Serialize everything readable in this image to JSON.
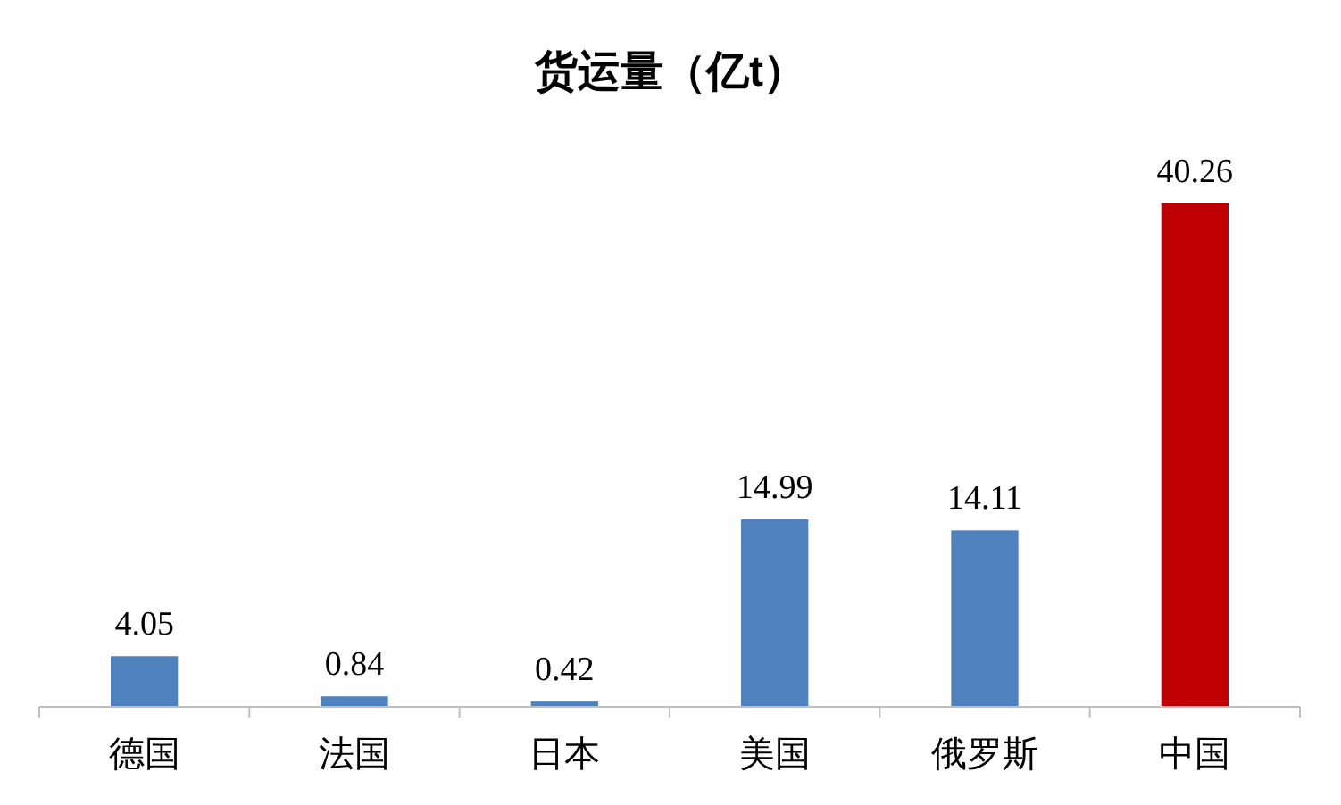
{
  "chart_data": {
    "type": "bar",
    "title": "货运量（亿t）",
    "categories": [
      "德国",
      "法国",
      "日本",
      "美国",
      "俄罗斯",
      "中国"
    ],
    "values": [
      4.05,
      0.84,
      0.42,
      14.99,
      14.11,
      40.26
    ],
    "colors": [
      "#4f81bd",
      "#4f81bd",
      "#4f81bd",
      "#4f81bd",
      "#4f81bd",
      "#c00000"
    ],
    "data_labels": true
  }
}
